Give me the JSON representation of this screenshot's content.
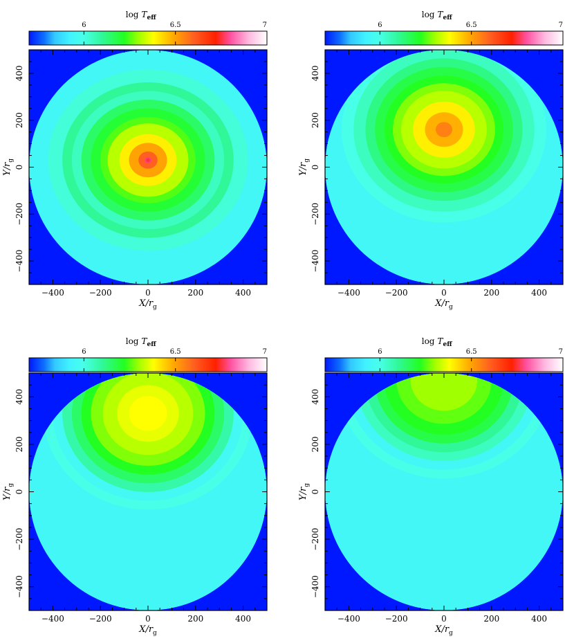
{
  "figure": {
    "background": "#ffffff"
  },
  "colorbar": {
    "label_prefix": "log",
    "label_var": "T",
    "label_sub": "eff",
    "ticks": [
      {
        "value": 6,
        "label": "6"
      },
      {
        "value": 6.5,
        "label": "6.5"
      },
      {
        "value": 7,
        "label": "7"
      }
    ],
    "range": [
      5.7,
      7.0
    ],
    "stops": [
      {
        "v": 5.7,
        "c": "#0018ff"
      },
      {
        "v": 5.78,
        "c": "#0d6cff"
      },
      {
        "v": 5.84,
        "c": "#33c8ff"
      },
      {
        "v": 5.92,
        "c": "#40f2ff"
      },
      {
        "v": 6.0,
        "c": "#48ffe8"
      },
      {
        "v": 6.1,
        "c": "#30f898"
      },
      {
        "v": 6.22,
        "c": "#22ff20"
      },
      {
        "v": 6.3,
        "c": "#a0ff00"
      },
      {
        "v": 6.38,
        "c": "#ffff00"
      },
      {
        "v": 6.48,
        "c": "#ffb000"
      },
      {
        "v": 6.6,
        "c": "#ff6020"
      },
      {
        "v": 6.72,
        "c": "#ff2000"
      },
      {
        "v": 6.8,
        "c": "#ff50a0"
      },
      {
        "v": 6.9,
        "c": "#ffb8e0"
      },
      {
        "v": 7.0,
        "c": "#ffffff"
      }
    ]
  },
  "axes": {
    "xlabel": "X/r",
    "xlabel_sub": "g",
    "ylabel": "Y/r",
    "ylabel_sub": "g",
    "xlim": [
      -500,
      500
    ],
    "ylim": [
      -500,
      500
    ],
    "xticks": [
      {
        "value": -400,
        "label": "−400"
      },
      {
        "value": -200,
        "label": "−200"
      },
      {
        "value": 0,
        "label": "0"
      },
      {
        "value": 200,
        "label": "200"
      },
      {
        "value": 400,
        "label": "400"
      }
    ],
    "yticks": [
      {
        "value": -400,
        "label": "−400"
      },
      {
        "value": -200,
        "label": "−200"
      },
      {
        "value": 0,
        "label": "0"
      },
      {
        "value": 200,
        "label": "200"
      },
      {
        "value": 400,
        "label": "400"
      }
    ]
  },
  "chart_data": [
    {
      "type": "heatmap",
      "xlabel": "X/r_g",
      "ylabel": "Y/r_g",
      "xlim": [
        -500,
        500
      ],
      "ylim": [
        -500,
        500
      ],
      "colorbar_label": "log T_eff",
      "background_color": "#0018ff",
      "disk_radius": 500,
      "hotspot": {
        "x": 0,
        "y": 30,
        "peak_logT": 6.75
      },
      "bands": [
        {
          "r": 500,
          "logT": 5.95
        },
        {
          "r": 420,
          "logT": 6.02
        },
        {
          "r": 360,
          "logT": 6.1
        },
        {
          "r": 320,
          "logT": 6.05
        },
        {
          "r": 280,
          "logT": 6.15
        },
        {
          "r": 240,
          "logT": 6.2
        },
        {
          "r": 200,
          "logT": 6.25
        },
        {
          "r": 170,
          "logT": 6.32
        },
        {
          "r": 120,
          "logT": 6.4
        },
        {
          "r": 80,
          "logT": 6.5
        },
        {
          "r": 40,
          "logT": 6.6
        },
        {
          "r": 15,
          "logT": 6.78
        }
      ]
    },
    {
      "type": "heatmap",
      "xlabel": "X/r_g",
      "ylabel": "Y/r_g",
      "xlim": [
        -500,
        500
      ],
      "ylim": [
        -500,
        500
      ],
      "colorbar_label": "log T_eff",
      "background_color": "#0018ff",
      "disk_radius": 500,
      "hotspot": {
        "x": 0,
        "y": 160,
        "peak_logT": 6.55
      },
      "bands": [
        {
          "r": 500,
          "logT": 5.95
        },
        {
          "r": 430,
          "logT": 6.0
        },
        {
          "r": 380,
          "logT": 6.05
        },
        {
          "r": 330,
          "logT": 6.12
        },
        {
          "r": 290,
          "logT": 6.18
        },
        {
          "r": 250,
          "logT": 6.22
        },
        {
          "r": 215,
          "logT": 6.28
        },
        {
          "r": 180,
          "logT": 6.32
        },
        {
          "r": 130,
          "logT": 6.4
        },
        {
          "r": 80,
          "logT": 6.48
        },
        {
          "r": 35,
          "logT": 6.55
        }
      ]
    },
    {
      "type": "heatmap",
      "xlabel": "X/r_g",
      "ylabel": "Y/r_g",
      "xlim": [
        -500,
        500
      ],
      "ylim": [
        -500,
        500
      ],
      "colorbar_label": "log T_eff",
      "background_color": "#0018ff",
      "disk_radius": 500,
      "hotspot": {
        "x": 0,
        "y": 330,
        "peak_logT": 6.38
      },
      "bands": [
        {
          "r": 500,
          "logT": 5.95
        },
        {
          "r": 440,
          "logT": 6.0
        },
        {
          "r": 400,
          "logT": 5.96
        },
        {
          "r": 360,
          "logT": 6.08
        },
        {
          "r": 320,
          "logT": 6.15
        },
        {
          "r": 280,
          "logT": 6.22
        },
        {
          "r": 240,
          "logT": 6.28
        },
        {
          "r": 190,
          "logT": 6.32
        },
        {
          "r": 130,
          "logT": 6.36
        },
        {
          "r": 80,
          "logT": 6.38
        }
      ]
    },
    {
      "type": "heatmap",
      "xlabel": "X/r_g",
      "ylabel": "Y/r_g",
      "xlim": [
        -500,
        500
      ],
      "ylim": [
        -500,
        500
      ],
      "colorbar_label": "log T_eff",
      "background_color": "#0018ff",
      "disk_radius": 500,
      "hotspot": {
        "x": 0,
        "y": 470,
        "peak_logT": 6.3
      },
      "bands": [
        {
          "r": 500,
          "logT": 5.95
        },
        {
          "r": 450,
          "logT": 6.0
        },
        {
          "r": 410,
          "logT": 5.95
        },
        {
          "r": 370,
          "logT": 6.05
        },
        {
          "r": 330,
          "logT": 6.1
        },
        {
          "r": 290,
          "logT": 6.18
        },
        {
          "r": 250,
          "logT": 6.22
        },
        {
          "r": 200,
          "logT": 6.26
        },
        {
          "r": 140,
          "logT": 6.3
        }
      ]
    }
  ]
}
